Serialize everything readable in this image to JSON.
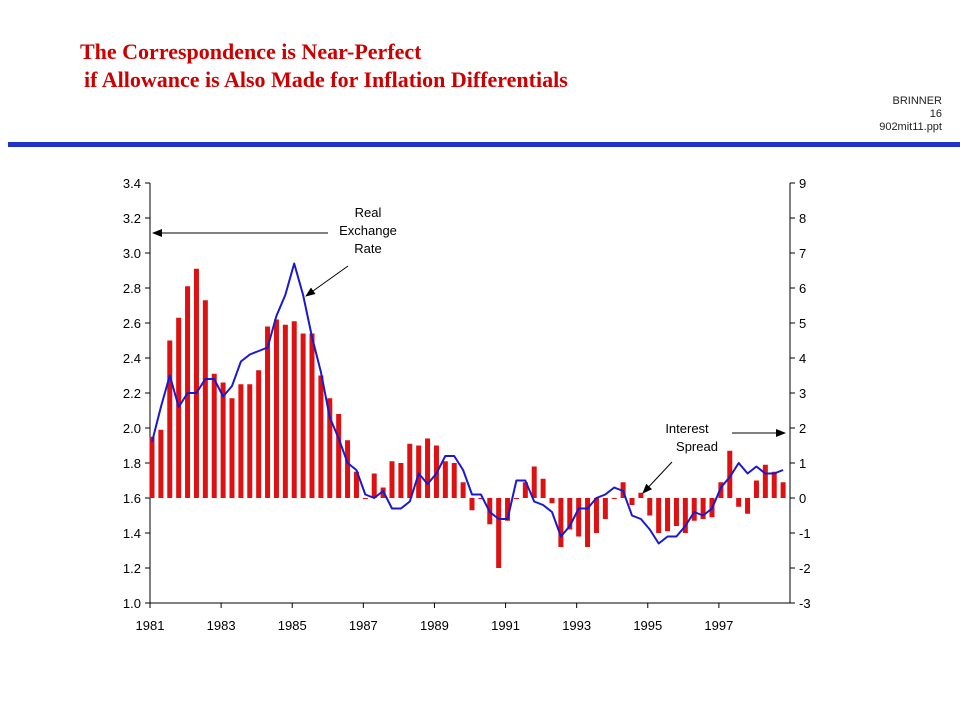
{
  "slide": {
    "title_line1": "The Correspondence is Near-Perfect",
    "title_line2": "if Allowance is Also Made for Inflation Differentials",
    "ref_line1": "BRINNER",
    "ref_line2": "16",
    "ref_line3": "902mit11.ppt",
    "rule_color": "#2233cc",
    "title_color": "#cc0000"
  },
  "chart_data": {
    "type": "bar+line",
    "x_ticks": [
      "1981",
      "1983",
      "1985",
      "1987",
      "1989",
      "1991",
      "1993",
      "1995",
      "1997"
    ],
    "xlim": [
      1981,
      1999
    ],
    "left_axis": {
      "ticks": [
        "3.4",
        "3.2",
        "3.0",
        "2.8",
        "2.6",
        "2.4",
        "2.2",
        "2.0",
        "1.8",
        "1.6",
        "1.4",
        "1.2",
        "1.0"
      ],
      "ylim": [
        1.0,
        3.4
      ]
    },
    "right_axis": {
      "ticks": [
        "9",
        "8",
        "7",
        "6",
        "5",
        "4",
        "3",
        "2",
        "1",
        "0",
        "-1",
        "-2",
        "-3"
      ],
      "ylim": [
        -3,
        9
      ]
    },
    "annotations": [
      {
        "id": "real",
        "lines": [
          "Real",
          "Exchange",
          "Rate"
        ],
        "points_to": "left-axis"
      },
      {
        "id": "spread",
        "lines": [
          "Interest",
          "Spread"
        ],
        "points_to": "right-axis"
      }
    ],
    "series": [
      {
        "name": "Real Exchange Rate",
        "kind": "bar",
        "axis": "left",
        "color": "#dd1111",
        "x": [
          1981.0,
          1981.25,
          1981.5,
          1981.75,
          1982.0,
          1982.25,
          1982.5,
          1982.75,
          1983.0,
          1983.25,
          1983.5,
          1983.75,
          1984.0,
          1984.25,
          1984.5,
          1984.75,
          1985.0,
          1985.25,
          1985.5,
          1985.75,
          1986.0,
          1986.25,
          1986.5,
          1986.75,
          1987.0,
          1987.25,
          1987.5,
          1987.75,
          1988.0,
          1988.25,
          1988.5,
          1988.75,
          1989.0,
          1989.25,
          1989.5,
          1989.75,
          1990.0,
          1990.25,
          1990.5,
          1990.75,
          1991.0,
          1991.25,
          1991.5,
          1991.75,
          1992.0,
          1992.25,
          1992.5,
          1992.75,
          1993.0,
          1993.25,
          1993.5,
          1993.75,
          1994.0,
          1994.25,
          1994.5,
          1994.75,
          1995.0,
          1995.25,
          1995.5,
          1995.75,
          1996.0,
          1996.25,
          1996.5,
          1996.75,
          1997.0,
          1997.25,
          1997.5,
          1997.75,
          1998.0,
          1998.25,
          1998.5,
          1998.75
        ],
        "values": [
          1.95,
          1.99,
          2.5,
          2.63,
          2.81,
          2.91,
          2.73,
          2.31,
          2.26,
          2.17,
          2.25,
          2.25,
          2.33,
          2.58,
          2.62,
          2.59,
          2.61,
          2.54,
          2.54,
          2.3,
          2.17,
          2.08,
          1.93,
          1.75,
          1.6,
          1.74,
          1.66,
          1.81,
          1.8,
          1.91,
          1.9,
          1.94,
          1.9,
          1.81,
          1.8,
          1.69,
          1.53,
          1.6,
          1.45,
          1.2,
          1.47,
          1.6,
          1.69,
          1.78,
          1.71,
          1.57,
          1.32,
          1.42,
          1.38,
          1.32,
          1.4,
          1.48,
          1.6,
          1.69,
          1.56,
          1.63,
          1.5,
          1.4,
          1.41,
          1.44,
          1.4,
          1.47,
          1.48,
          1.49,
          1.69,
          1.87,
          1.55,
          1.51,
          1.7,
          1.79,
          1.75,
          1.69
        ]
      },
      {
        "name": "Interest Spread",
        "kind": "line",
        "axis": "right",
        "color": "#1a1acc",
        "x": [
          1981.0,
          1981.25,
          1981.5,
          1981.75,
          1982.0,
          1982.25,
          1982.5,
          1982.75,
          1983.0,
          1983.25,
          1983.5,
          1983.75,
          1984.0,
          1984.25,
          1984.5,
          1984.75,
          1985.0,
          1985.25,
          1985.5,
          1985.75,
          1986.0,
          1986.25,
          1986.5,
          1986.75,
          1987.0,
          1987.25,
          1987.5,
          1987.75,
          1988.0,
          1988.25,
          1988.5,
          1988.75,
          1989.0,
          1989.25,
          1989.5,
          1989.75,
          1990.0,
          1990.25,
          1990.5,
          1990.75,
          1991.0,
          1991.25,
          1991.5,
          1991.75,
          1992.0,
          1992.25,
          1992.5,
          1992.75,
          1993.0,
          1993.25,
          1993.5,
          1993.75,
          1994.0,
          1994.25,
          1994.5,
          1994.75,
          1995.0,
          1995.25,
          1995.5,
          1995.75,
          1996.0,
          1996.25,
          1996.5,
          1996.75,
          1997.0,
          1997.25,
          1997.5,
          1997.75,
          1998.0,
          1998.25,
          1998.5,
          1998.75
        ],
        "values": [
          1.6,
          2.6,
          3.5,
          2.6,
          3.0,
          3.0,
          3.4,
          3.4,
          2.9,
          3.2,
          3.9,
          4.1,
          4.2,
          4.3,
          5.2,
          5.8,
          6.7,
          5.8,
          4.6,
          3.6,
          2.3,
          1.7,
          1.0,
          0.8,
          0.1,
          0.0,
          0.2,
          -0.3,
          -0.3,
          -0.1,
          0.7,
          0.4,
          0.7,
          1.2,
          1.2,
          0.8,
          0.1,
          0.1,
          -0.4,
          -0.6,
          -0.6,
          0.5,
          0.5,
          -0.1,
          -0.2,
          -0.4,
          -1.1,
          -0.8,
          -0.3,
          -0.3,
          0.0,
          0.1,
          0.3,
          0.2,
          -0.5,
          -0.6,
          -0.9,
          -1.3,
          -1.1,
          -1.1,
          -0.8,
          -0.4,
          -0.5,
          -0.3,
          0.3,
          0.6,
          1.0,
          0.7,
          0.9,
          0.7,
          0.7,
          0.8
        ]
      }
    ]
  }
}
